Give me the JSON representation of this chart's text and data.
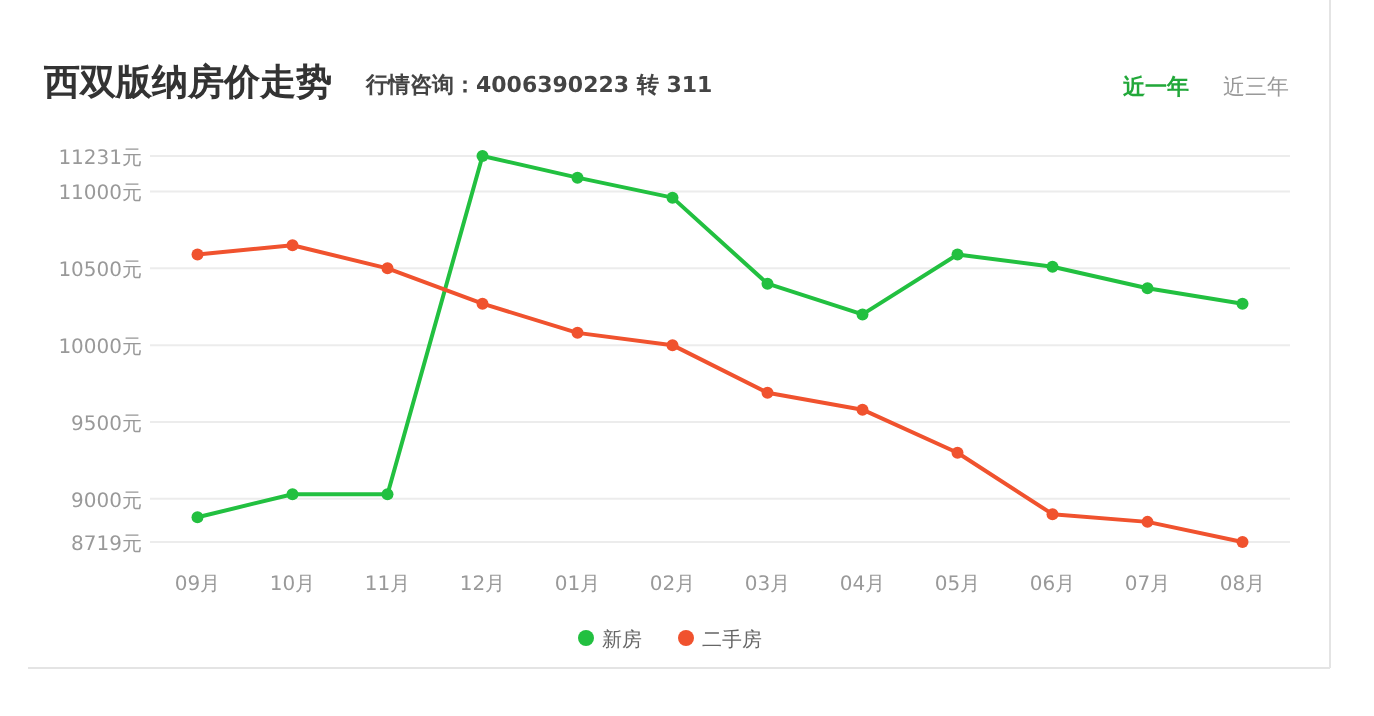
{
  "chart_data": {
    "type": "line",
    "title": "西双版纳房价走势",
    "subtitle": "行情咨询：4006390223 转 311",
    "annotations": [
      "近一年",
      "近三年"
    ],
    "categories": [
      "09月",
      "10月",
      "11月",
      "12月",
      "01月",
      "02月",
      "03月",
      "04月",
      "05月",
      "06月",
      "07月",
      "08月"
    ],
    "series": [
      {
        "name": "新房",
        "color": "#22c040",
        "values": [
          8880,
          9030,
          9030,
          11231,
          11090,
          10960,
          10400,
          10200,
          10590,
          10510,
          10370,
          10270
        ]
      },
      {
        "name": "二手房",
        "color": "#f0522e",
        "values": [
          10590,
          10650,
          10500,
          10270,
          10080,
          10000,
          9690,
          9580,
          9300,
          8900,
          8850,
          8719
        ]
      }
    ],
    "ylim": [
      8719,
      11231
    ],
    "yticks": [
      {
        "value": 8719,
        "label": "8719元"
      },
      {
        "value": 9000,
        "label": "9000元"
      },
      {
        "value": 9500,
        "label": "9500元"
      },
      {
        "value": 10000,
        "label": "10000元"
      },
      {
        "value": 10500,
        "label": "10500元"
      },
      {
        "value": 11000,
        "label": "11000元"
      },
      {
        "value": 11231,
        "label": "11231元"
      }
    ],
    "grid": "y",
    "legend": "bottom",
    "marker": "circle",
    "line_style": "solid"
  }
}
